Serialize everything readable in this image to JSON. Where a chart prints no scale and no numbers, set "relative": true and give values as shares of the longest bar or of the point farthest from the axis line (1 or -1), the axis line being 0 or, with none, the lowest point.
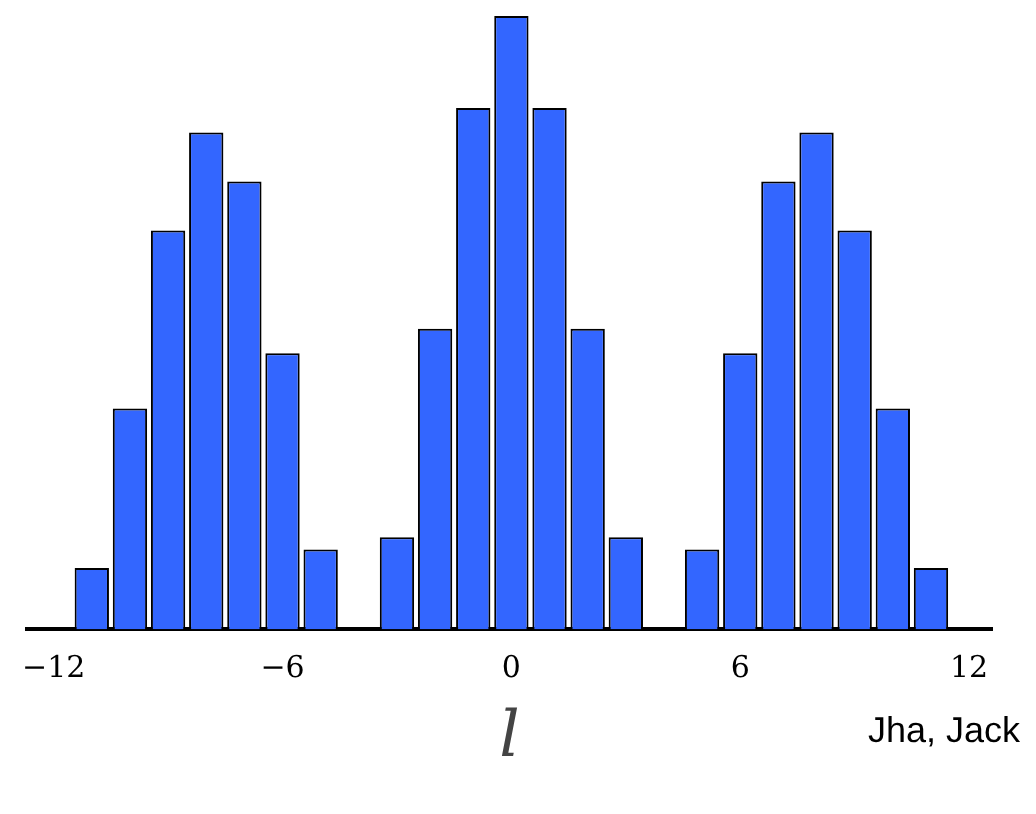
{
  "chart_data": {
    "type": "bar",
    "relative": true,
    "xlabel": "l",
    "annotations": [
      "Jha, Jack"
    ],
    "x": [
      -11,
      -10,
      -9,
      -8,
      -7,
      -6,
      -5,
      -3,
      -2,
      -1,
      0,
      1,
      2,
      3,
      5,
      6,
      7,
      8,
      9,
      10,
      11
    ],
    "values": [
      0.1,
      0.36,
      0.65,
      0.81,
      0.73,
      0.45,
      0.13,
      0.15,
      0.49,
      0.85,
      1,
      0.85,
      0.49,
      0.15,
      0.13,
      0.45,
      0.73,
      0.81,
      0.65,
      0.36,
      0.1
    ],
    "color": "#3366ff",
    "xlim": [
      -12.7,
      12.6
    ],
    "xticks": [
      -12,
      -6,
      0,
      6,
      12
    ],
    "grid": false,
    "legend": false
  }
}
